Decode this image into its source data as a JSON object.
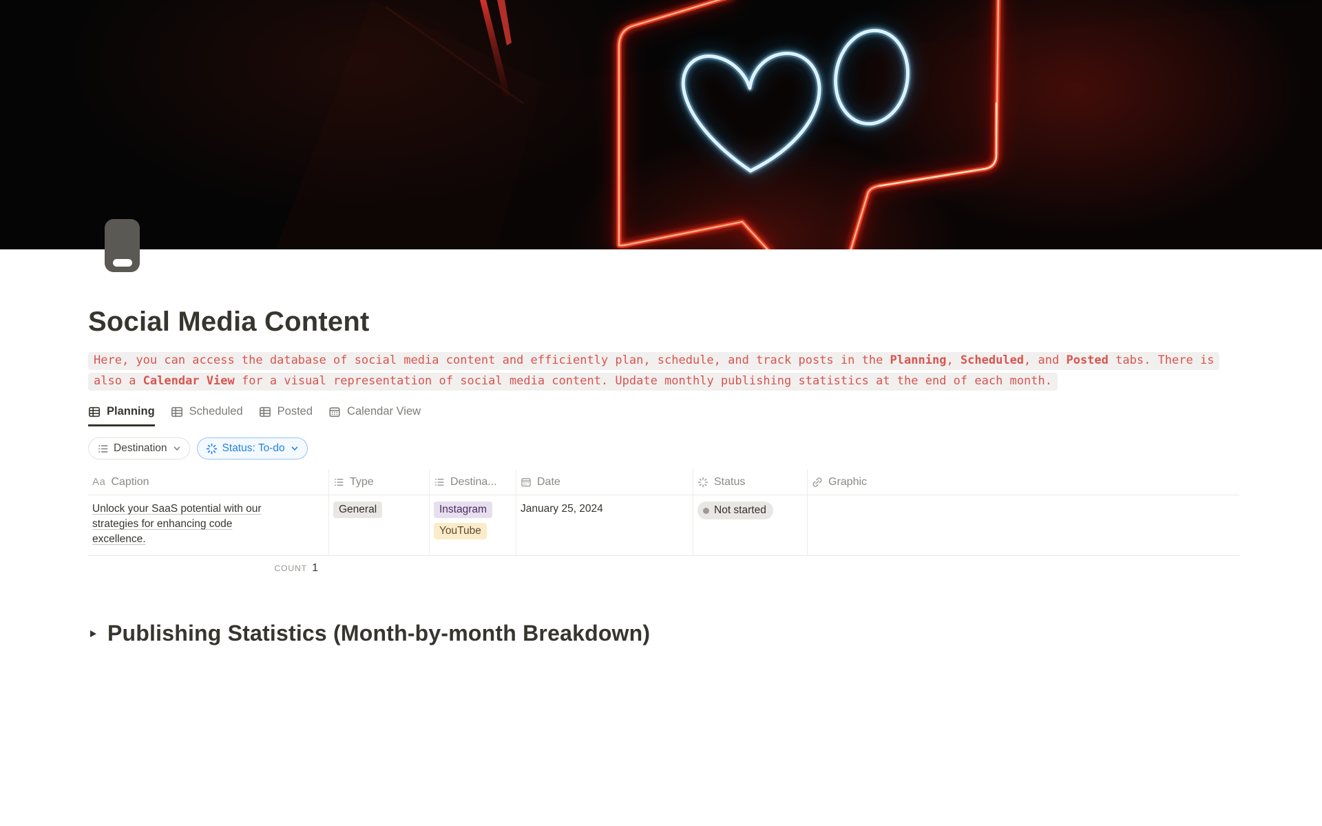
{
  "page": {
    "title": "Social Media Content",
    "icon": "phone-icon"
  },
  "description": {
    "lines": [
      [
        {
          "t": "Here, you can access the database of social media content and efficiently plan, schedule, and track posts in the ",
          "b": false
        },
        {
          "t": "Planning",
          "b": true
        },
        {
          "t": ", ",
          "b": false
        },
        {
          "t": "Scheduled",
          "b": true
        },
        {
          "t": ", and ",
          "b": false
        },
        {
          "t": "Posted",
          "b": true
        },
        {
          "t": " tabs. There is",
          "b": false
        }
      ],
      [
        {
          "t": "also a ",
          "b": false
        },
        {
          "t": "Calendar View",
          "b": true
        },
        {
          "t": " for a visual representation of social media content. Update monthly publishing statistics at the end of each month.",
          "b": false
        }
      ]
    ]
  },
  "tabs": [
    {
      "label": "Planning",
      "icon": "table-icon",
      "active": true
    },
    {
      "label": "Scheduled",
      "icon": "table-icon",
      "active": false
    },
    {
      "label": "Posted",
      "icon": "table-icon",
      "active": false
    },
    {
      "label": "Calendar View",
      "icon": "calendar-icon",
      "active": false
    }
  ],
  "filters": [
    {
      "label": "Destination",
      "icon": "list-icon",
      "style": "default"
    },
    {
      "label": "Status: To-do",
      "icon": "spinner-icon",
      "style": "blue"
    }
  ],
  "table": {
    "columns": [
      {
        "label": "Caption",
        "icon": "text-icon"
      },
      {
        "label": "Type",
        "icon": "list-icon"
      },
      {
        "label": "Destina...",
        "icon": "list-icon"
      },
      {
        "label": "Date",
        "icon": "calendar-icon"
      },
      {
        "label": "Status",
        "icon": "spinner-icon"
      },
      {
        "label": "Graphic",
        "icon": "link-icon"
      }
    ],
    "rows": [
      {
        "caption": "Unlock your SaaS potential with our strategies for enhancing code excellence.",
        "type": {
          "label": "General",
          "color": "#E8E7E4"
        },
        "destinations": [
          {
            "label": "Instagram",
            "color": "#E7DFEE"
          },
          {
            "label": "YouTube",
            "color": "#FBECC9"
          }
        ],
        "date": "January 25, 2024",
        "status": {
          "label": "Not started",
          "dot_color": "#9B9A97"
        }
      }
    ],
    "footer": {
      "label": "COUNT",
      "value": "1"
    }
  },
  "toggle_heading": {
    "label": "Publishing Statistics (Month-by-month Breakdown)"
  },
  "colors": {
    "accent_blue": "#2383E2",
    "code_red": "#D85450",
    "neon_red": "#E83A22",
    "neon_blue_white": "#F2FAFF",
    "icon_gray": "#5B5954"
  }
}
